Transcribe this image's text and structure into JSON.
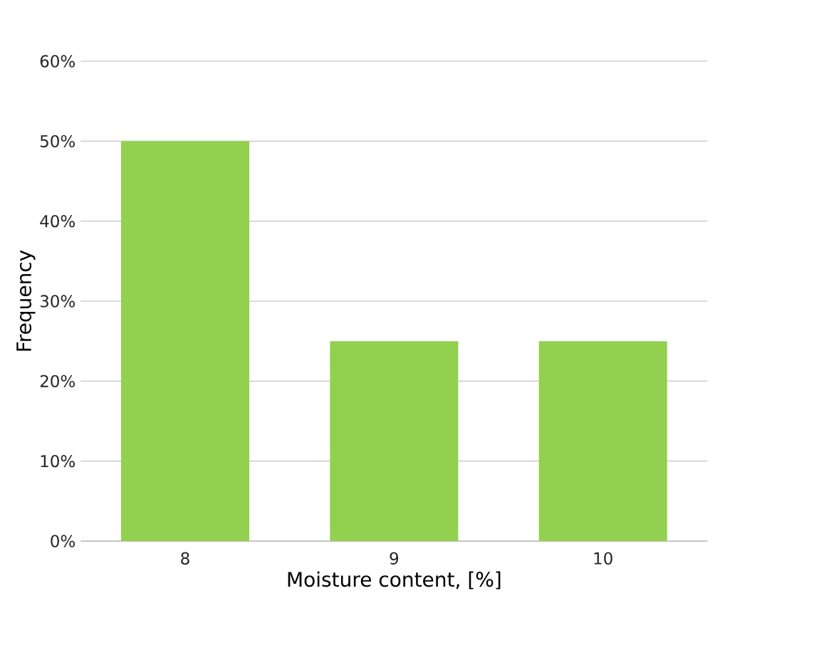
{
  "chart_data": {
    "type": "bar",
    "xlabel": "Moisture content, [%]",
    "ylabel": "Frequency",
    "categories": [
      "8",
      "9",
      "10"
    ],
    "values": [
      50,
      25,
      25
    ],
    "color": "#92d050",
    "ylim": [
      0,
      60
    ],
    "yticks": [
      {
        "value": 0,
        "label": "0%"
      },
      {
        "value": 10,
        "label": "10%"
      },
      {
        "value": 20,
        "label": "20%"
      },
      {
        "value": 30,
        "label": "30%"
      },
      {
        "value": 40,
        "label": "40%"
      },
      {
        "value": 50,
        "label": "50%"
      },
      {
        "value": 60,
        "label": "60%"
      }
    ],
    "grid": "y"
  }
}
